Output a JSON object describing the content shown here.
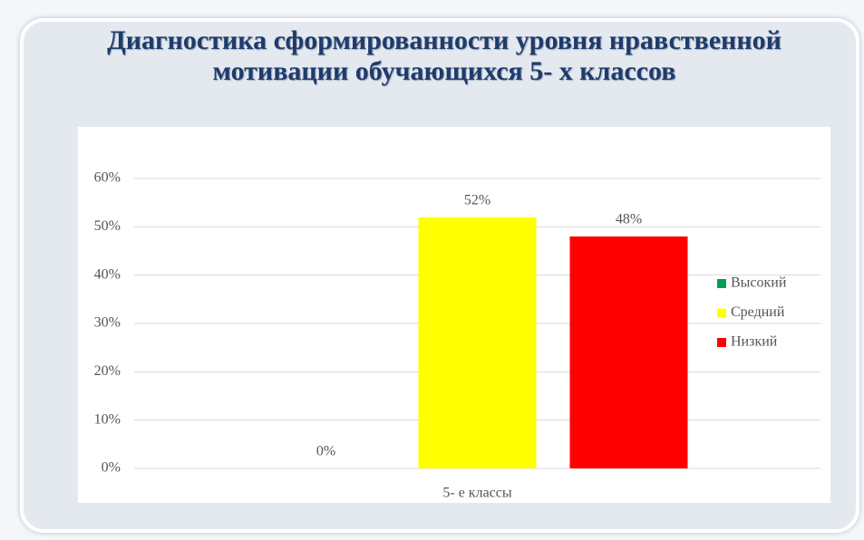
{
  "chart_data": {
    "type": "bar",
    "title": "Диагностика сформированности уровня нравственной мотивации  обучающихся 5- х классов",
    "categories": [
      "5- е классы"
    ],
    "series": [
      {
        "name": "Высокий",
        "color": "#00a050",
        "values": [
          0
        ],
        "value_labels": [
          "0%"
        ]
      },
      {
        "name": "Средний",
        "color": "#ffff00",
        "values": [
          52
        ],
        "value_labels": [
          "52%"
        ]
      },
      {
        "name": "Низкий",
        "color": "#ff0000",
        "values": [
          48
        ],
        "value_labels": [
          "48%"
        ]
      }
    ],
    "ylim": [
      0,
      60
    ],
    "yticks": [
      {
        "value": 0,
        "label": "0%"
      },
      {
        "value": 10,
        "label": "10%"
      },
      {
        "value": 20,
        "label": "20%"
      },
      {
        "value": 30,
        "label": "30%"
      },
      {
        "value": 40,
        "label": "40%"
      },
      {
        "value": 50,
        "label": "50%"
      },
      {
        "value": 60,
        "label": "60%"
      }
    ],
    "grid": true,
    "legend": "right"
  }
}
